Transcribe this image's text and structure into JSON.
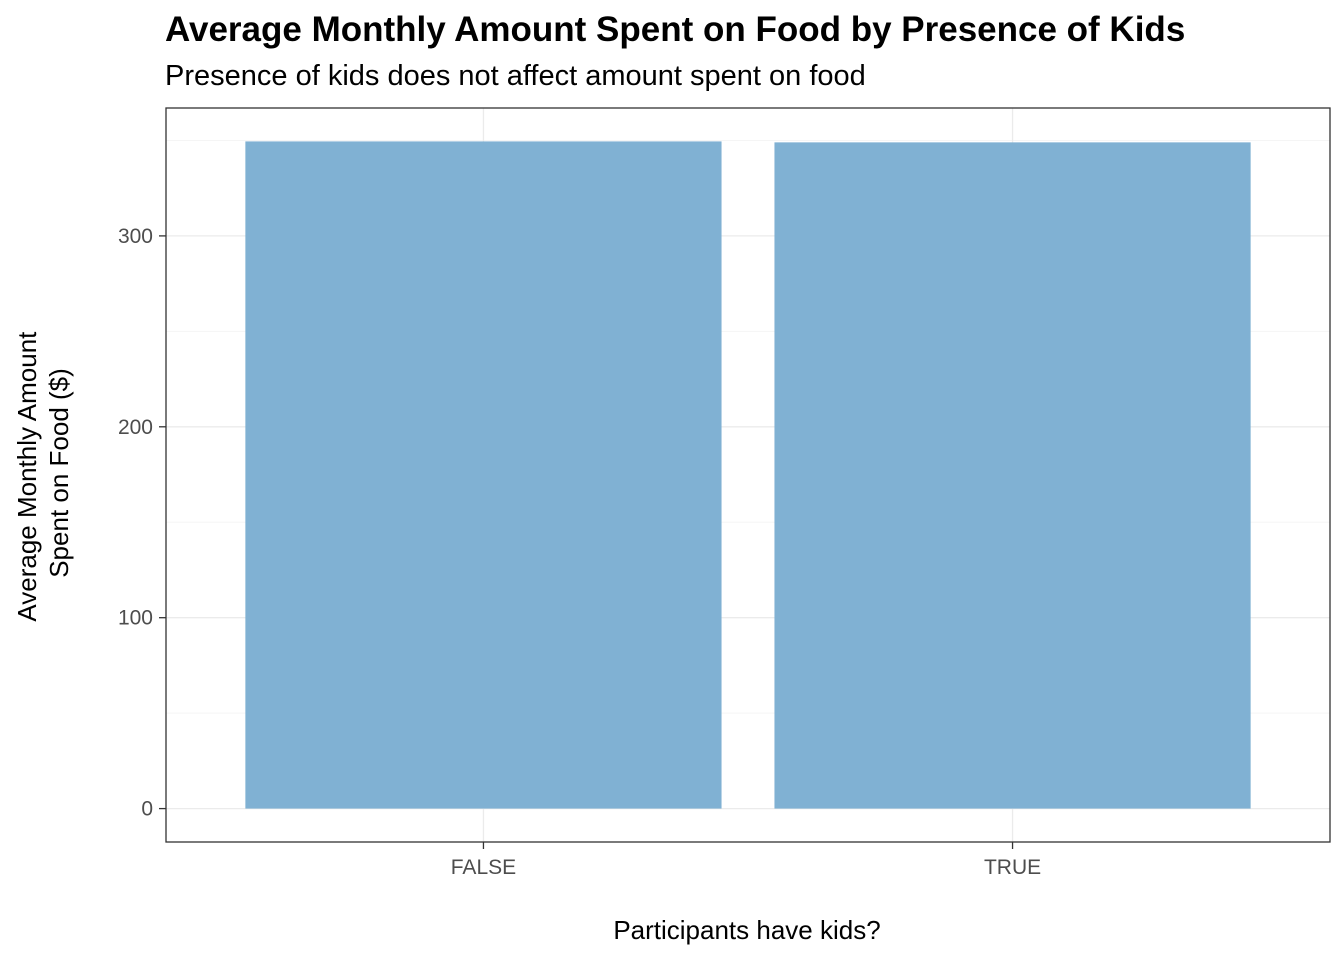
{
  "chart_data": {
    "type": "bar",
    "title": "Average Monthly Amount Spent on Food by Presence of Kids",
    "subtitle": "Presence of kids does not affect amount spent on food",
    "xlabel": "Participants have kids?",
    "ylabel_lines": [
      "Average Monthly Amount",
      "Spent on Food ($)"
    ],
    "categories": [
      "FALSE",
      "TRUE"
    ],
    "values": [
      349.5,
      349.0
    ],
    "ylim": [
      -17.5,
      367
    ],
    "yticks": [
      0,
      100,
      200,
      300
    ],
    "ytick_labels": [
      "0",
      "100",
      "200",
      "300"
    ],
    "grid": true,
    "bar_color": "#80B1D3",
    "panel_border_color": "#333333",
    "grid_major_color": "#EBEBEB",
    "grid_minor_color": "#F5F5F5"
  }
}
